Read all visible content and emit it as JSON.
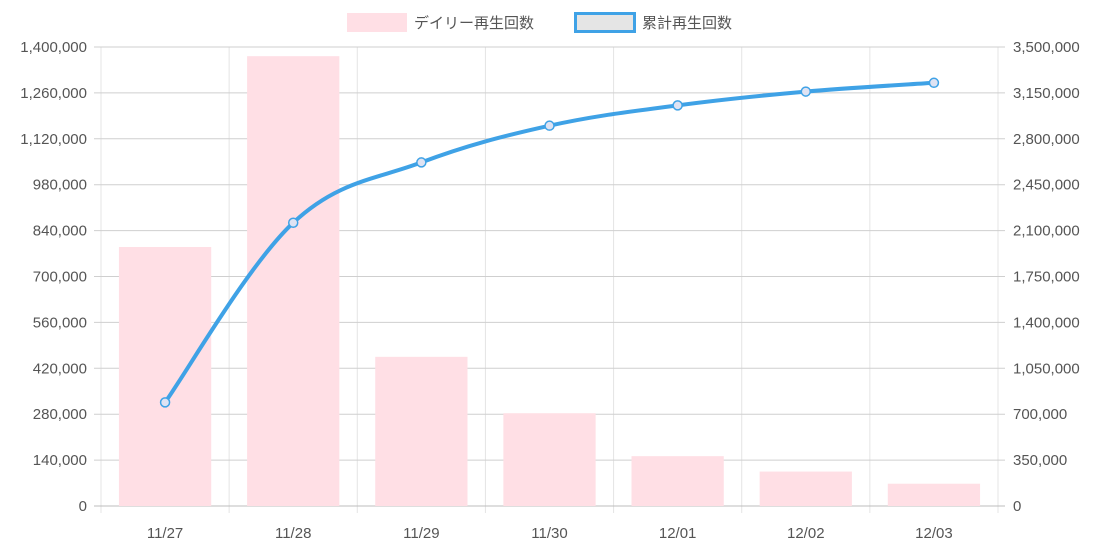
{
  "chart_data": {
    "type": "bar",
    "categories": [
      "11/27",
      "11/28",
      "11/29",
      "11/30",
      "12/01",
      "12/02",
      "12/03"
    ],
    "series": [
      {
        "name": "デイリー再生回数",
        "type": "bar",
        "axis": "left",
        "color": "#ffdfe5",
        "values": [
          790000,
          1372000,
          455000,
          283000,
          152000,
          105000,
          68000
        ]
      },
      {
        "name": "累計再生回数",
        "type": "line",
        "axis": "right",
        "color": "#3fa2e6",
        "values": [
          790000,
          2160000,
          2620000,
          2900000,
          3055000,
          3160000,
          3227000
        ]
      }
    ],
    "y_left": {
      "min": 0,
      "max": 1400000,
      "step": 140000,
      "tick_labels": [
        "0",
        "140,000",
        "280,000",
        "420,000",
        "560,000",
        "700,000",
        "840,000",
        "980,000",
        "1,120,000",
        "1,260,000",
        "1,400,000"
      ]
    },
    "y_right": {
      "min": 0,
      "max": 3500000,
      "step": 350000,
      "tick_labels": [
        "0",
        "350,000",
        "700,000",
        "1,050,000",
        "1,400,000",
        "1,750,000",
        "2,100,000",
        "2,450,000",
        "2,800,000",
        "3,150,000",
        "3,500,000"
      ]
    },
    "grid": true,
    "legend_position": "top-center"
  }
}
